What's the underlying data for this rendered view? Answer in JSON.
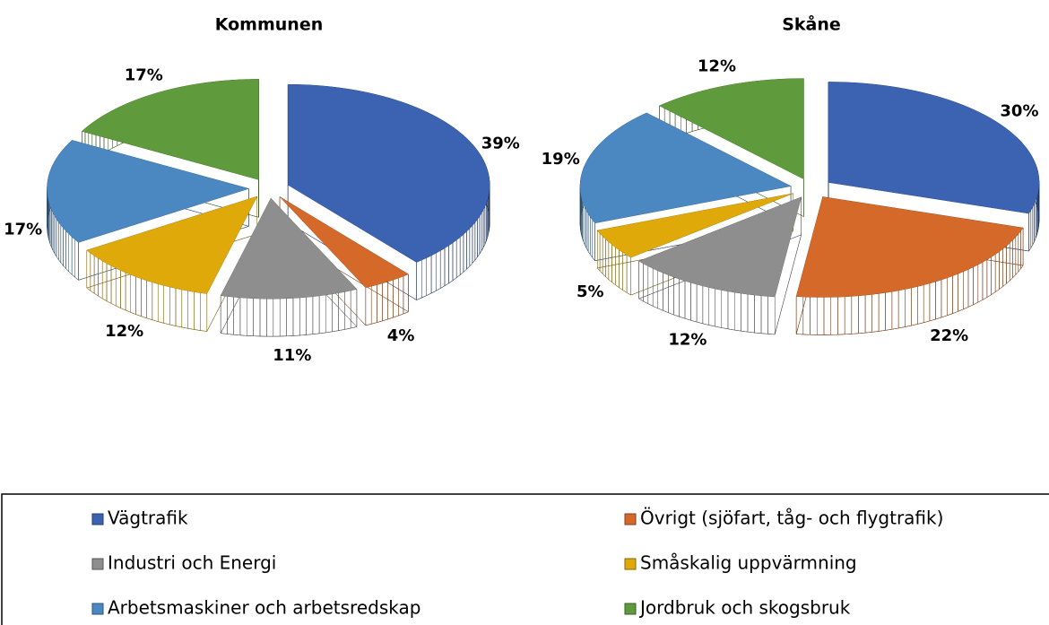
{
  "chart_data": [
    {
      "type": "pie",
      "title": "Kommunen",
      "categories": [
        "Vägtrafik",
        "Övrigt (sjöfart, tåg- och flygtrafik)",
        "Industri och Energi",
        "Småskalig uppvärmning",
        "Arbetsmaskiner och arbetsredskap",
        "Jordbruk och skogsbruk"
      ],
      "values": [
        39,
        4,
        11,
        12,
        17,
        17
      ],
      "value_labels": [
        "39%",
        "4%",
        "11%",
        "12%",
        "17%",
        "17%"
      ],
      "colors": [
        "#3b63b1",
        "#d4692a",
        "#8e8e8e",
        "#e0a90a",
        "#4b88c2",
        "#5f9b3c"
      ],
      "legend": "bottom"
    },
    {
      "type": "pie",
      "title": "Skåne",
      "categories": [
        "Vägtrafik",
        "Övrigt (sjöfart, tåg- och flygtrafik)",
        "Industri och Energi",
        "Småskalig uppvärmning",
        "Arbetsmaskiner och arbetsredskap",
        "Jordbruk och skogsbruk"
      ],
      "values": [
        30,
        22,
        12,
        5,
        19,
        12
      ],
      "value_labels": [
        "30%",
        "22%",
        "12%",
        "5%",
        "19%",
        "12%"
      ],
      "colors": [
        "#3b63b1",
        "#d4692a",
        "#8e8e8e",
        "#e0a90a",
        "#4b88c2",
        "#5f9b3c"
      ],
      "legend": "bottom"
    }
  ]
}
